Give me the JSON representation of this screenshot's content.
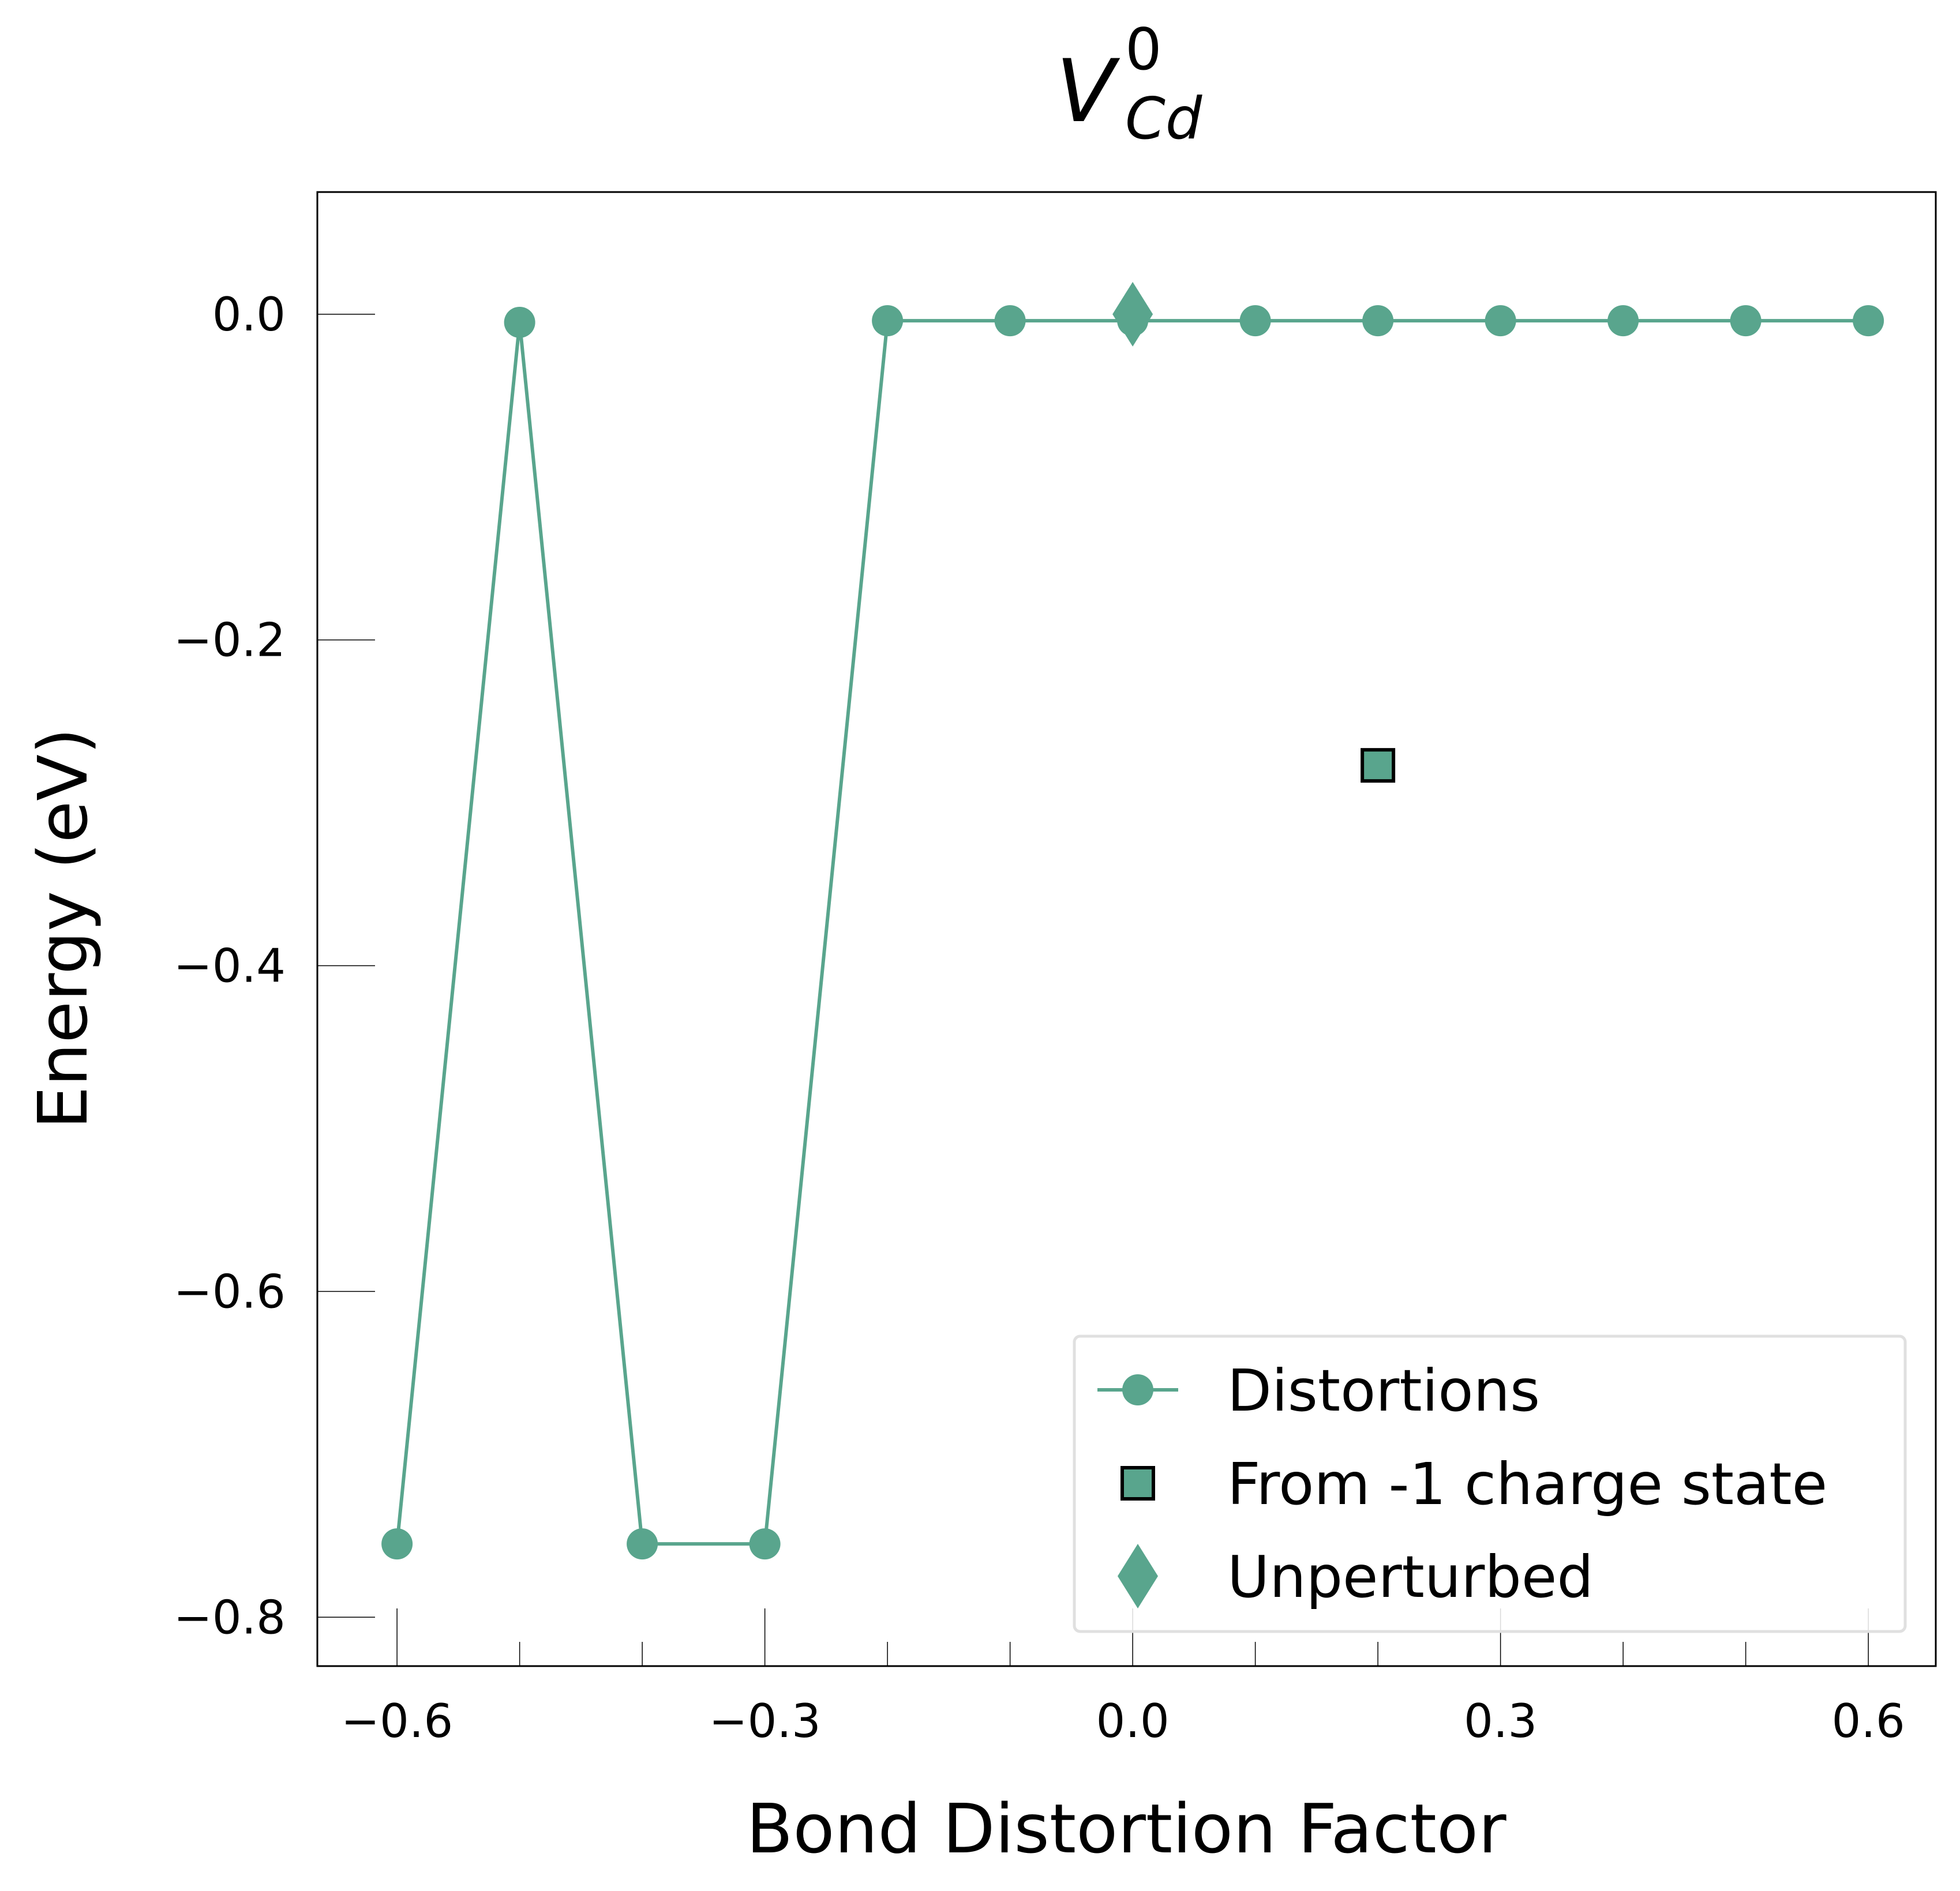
{
  "chart_data": {
    "type": "line",
    "title": {
      "base": "V",
      "superscript": "0",
      "subscript": "Cd"
    },
    "xlabel": "Bond Distortion Factor",
    "ylabel": "Energy (eV)",
    "xlim": [
      -0.665,
      0.655
    ],
    "ylim": [
      -0.83,
      0.075
    ],
    "xticks": [
      -0.6,
      -0.3,
      0.0,
      0.3,
      0.6
    ],
    "xtick_labels": [
      "−0.6",
      "−0.3",
      "0.0",
      "0.3",
      "0.6"
    ],
    "xminor_ticks": [
      -0.5,
      -0.4,
      -0.2,
      -0.1,
      0.1,
      0.2,
      0.4,
      0.5
    ],
    "yticks": [
      0.0,
      -0.2,
      -0.4,
      -0.6,
      -0.8
    ],
    "ytick_labels": [
      "0.0",
      "−0.2",
      "−0.4",
      "−0.6",
      "−0.8"
    ],
    "grid": false,
    "legend_position": "lower-right",
    "color": "#59a58d",
    "series": [
      {
        "name": "Distortions",
        "kind": "line-marker",
        "x": [
          -0.6,
          -0.5,
          -0.4,
          -0.3,
          -0.2,
          -0.1,
          0.0,
          0.1,
          0.2,
          0.3,
          0.4,
          0.5,
          0.6
        ],
        "y": [
          -0.755,
          -0.005,
          -0.755,
          -0.755,
          -0.004,
          -0.004,
          -0.004,
          -0.004,
          -0.004,
          -0.004,
          -0.004,
          -0.004,
          -0.004
        ]
      },
      {
        "name": "From -1 charge state",
        "kind": "square",
        "x": [
          0.2
        ],
        "y": [
          -0.277
        ]
      },
      {
        "name": "Unperturbed",
        "kind": "diamond",
        "x": [
          0.0
        ],
        "y": [
          0.0
        ]
      }
    ]
  }
}
